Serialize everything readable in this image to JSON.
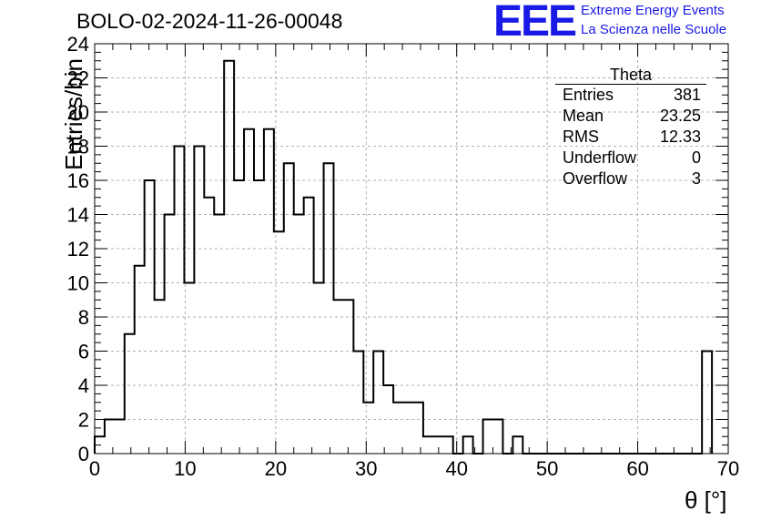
{
  "title": "BOLO-02-2024-11-26-00048",
  "logo": {
    "mark": "EEE",
    "line1": "Extreme Energy Events",
    "line2": "La Scienza nelle Scuole",
    "color": "#1a1ae6"
  },
  "stats": {
    "title": "Theta",
    "rows": [
      {
        "label": "Entries",
        "value": "381"
      },
      {
        "label": "Mean",
        "value": "23.25"
      },
      {
        "label": "RMS",
        "value": "12.33"
      },
      {
        "label": "Underflow",
        "value": "0"
      },
      {
        "label": "Overflow",
        "value": "3"
      }
    ]
  },
  "chart_data": {
    "type": "histogram",
    "xlabel": "θ [°]",
    "ylabel": "Entries/bin",
    "xlim": [
      0,
      70
    ],
    "ylim": [
      0,
      24
    ],
    "bin_width": 1.1,
    "bin_start": 0,
    "values": [
      1,
      2,
      2,
      7,
      11,
      16,
      9,
      14,
      18,
      10,
      18,
      15,
      14,
      23,
      16,
      19,
      16,
      19,
      13,
      17,
      14,
      15,
      10,
      17,
      9,
      9,
      6,
      3,
      6,
      4,
      3,
      3,
      3,
      1,
      1,
      1,
      0,
      1,
      0,
      2,
      2,
      0,
      1,
      0,
      0,
      0,
      0,
      0,
      0,
      0,
      0,
      0,
      0,
      0,
      0,
      0,
      0,
      0,
      0,
      0,
      0,
      6
    ],
    "xticks": [
      0,
      10,
      20,
      30,
      40,
      50,
      60,
      70
    ],
    "yticks": [
      0,
      2,
      4,
      6,
      8,
      10,
      12,
      14,
      16,
      18,
      20,
      22,
      24
    ],
    "grid": true,
    "line_color": "#000000",
    "grid_color": "#b0b0b0"
  }
}
